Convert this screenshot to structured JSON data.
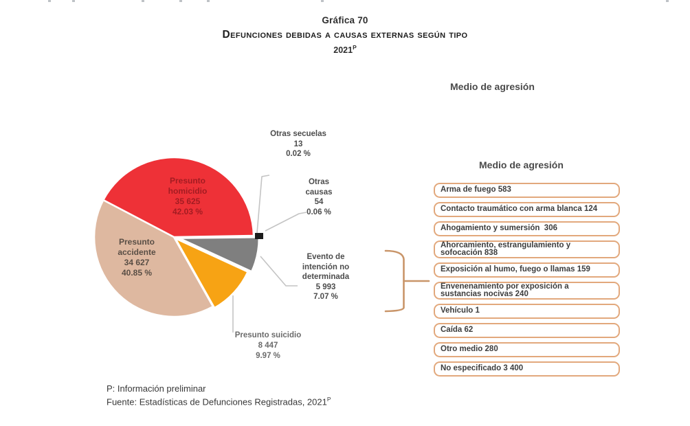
{
  "page": {
    "graph_label": "Gráfica 70",
    "title": "Defunciones debidas a causas externas según tipo",
    "year": "2021",
    "year_superscript": "P"
  },
  "aggression_panel": {
    "floating_header": "Medio de agresión",
    "list_header": "Medio de agresión",
    "box_border_color": "#e2a87c",
    "items": [
      {
        "text": "Arma de fuego 583",
        "value": 583,
        "lines": [
          "Arma de fuego 583"
        ]
      },
      {
        "text": "Contacto traumático con arma blanca 124",
        "value": 124,
        "lines": [
          "Contacto traumático con arma blanca 124"
        ]
      },
      {
        "text": "Ahogamiento y sumersión 306",
        "value": 306,
        "lines": [
          "Ahogamiento y sumersión  306"
        ]
      },
      {
        "text": "Ahorcamiento, estrangulamiento y sofocación 838",
        "value": 838,
        "lines": [
          "Ahorcamiento, estrangulamiento y",
          "sofocación 838"
        ]
      },
      {
        "text": "Exposición al humo, fuego o llamas 159",
        "value": 159,
        "lines": [
          "Exposición al humo, fuego o llamas 159"
        ]
      },
      {
        "text": "Envenenamiento por exposición a sustancias nocivas 240",
        "value": 240,
        "lines": [
          "Envenenamiento por exposición a",
          "sustancias nocivas 240"
        ]
      },
      {
        "text": "Vehículo 1",
        "value": 1,
        "lines": [
          "Vehículo 1"
        ]
      },
      {
        "text": "Caída 62",
        "value": 62,
        "lines": [
          "Caída 62"
        ]
      },
      {
        "text": "Otro medio 280",
        "value": 280,
        "lines": [
          "Otro medio 280"
        ]
      },
      {
        "text": "No especificado 3 400",
        "value": 3400,
        "lines": [
          "No especificado 3 400"
        ]
      }
    ]
  },
  "footnotes": {
    "line1": "P: Información preliminar",
    "line2": "Fuente: Estadísticas de Defunciones Registradas, 2021",
    "line2_superscript": "P"
  },
  "chart_data": {
    "type": "pie",
    "title": "Defunciones debidas a causas externas según tipo, 2021 (preliminar)",
    "unit": "defunciones",
    "legend_position": "labels-on-chart",
    "slices": [
      {
        "label": "Presunto homicidio",
        "value": 35625,
        "pct": 42.03,
        "color": "#ee3137",
        "text_color": "#a31c22",
        "label_lines": [
          "Presunto",
          "homicidio",
          "35 625",
          "42.03 %"
        ]
      },
      {
        "label": "Presunto accidente",
        "value": 34627,
        "pct": 40.85,
        "color": "#deb8a0",
        "text_color": "#594e45",
        "label_lines": [
          "Presunto",
          "accidente",
          "34 627",
          "40.85 %"
        ]
      },
      {
        "label": "Presunto suicidio",
        "value": 8447,
        "pct": 9.97,
        "color": "#f7a314",
        "text_color": "#6b6b6b",
        "label_lines": [
          "Presunto suicidio",
          "8 447",
          "9.97 %"
        ]
      },
      {
        "label": "Evento de intención no determinada",
        "value": 5993,
        "pct": 7.07,
        "color": "#7f7f7f",
        "text_color": "#4c4c4c",
        "label_lines": [
          "Evento de",
          "intención no",
          "determinada",
          "5 993",
          "7.07 %"
        ]
      },
      {
        "label": "Otras causas",
        "value": 54,
        "pct": 0.06,
        "color": "#1c1c1c",
        "text_color": "#4c4c4c",
        "label_lines": [
          "Otras",
          "causas",
          "54",
          "0.06 %"
        ]
      },
      {
        "label": "Otras secuelas",
        "value": 13,
        "pct": 0.02,
        "color": "#1c1c1c",
        "text_color": "#4c4c4c",
        "label_lines": [
          "Otras secuelas",
          "13",
          "0.02 %"
        ]
      }
    ]
  }
}
